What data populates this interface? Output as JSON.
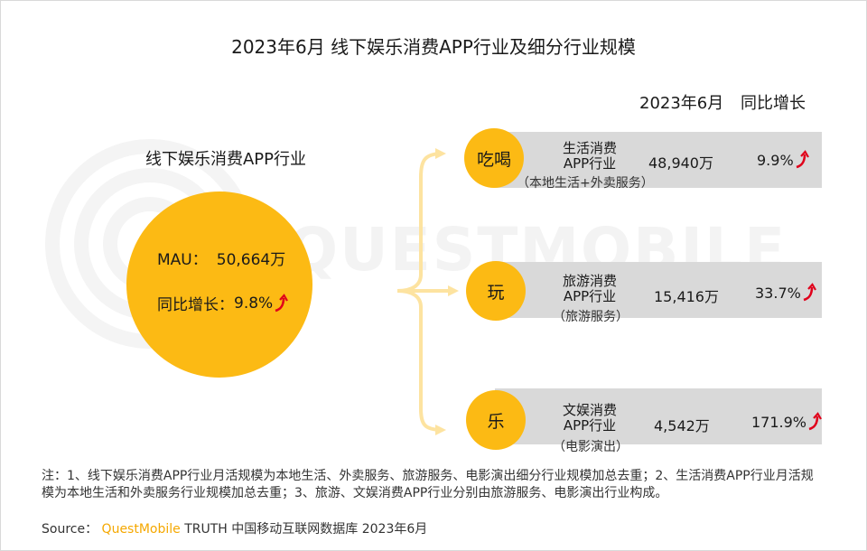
{
  "title": "2023年6月 线下娱乐消费APP行业及细分行业规模",
  "watermark": "QUESTMOBILE",
  "main": {
    "label": "线下娱乐消费APP行业",
    "mau_label": "MAU：",
    "mau_value": "50,664万",
    "growth_label": "同比增长：",
    "growth_value": "9.8%"
  },
  "headers": {
    "period": "2023年6月",
    "growth": "同比增长"
  },
  "rows": [
    {
      "circle": "吃喝",
      "name_line1": "生活消费",
      "name_line2": "APP行业",
      "sub": "（本地生活+外卖服务）",
      "value": "48,940万",
      "growth": "9.9%"
    },
    {
      "circle": "玩",
      "name_line1": "旅游消费",
      "name_line2": "APP行业",
      "sub": "（旅游服务）",
      "value": "15,416万",
      "growth": "33.7%"
    },
    {
      "circle": "乐",
      "name_line1": "文娱消费",
      "name_line2": "APP行业",
      "sub": "（电影演出）",
      "value": "4,542万",
      "growth": "171.9%"
    }
  ],
  "note": "注：1、线下娱乐消费APP行业月活规模为本地生活、外卖服务、旅游服务、电影演出细分行业规模加总去重；2、生活消费APP行业月活规模为本地生活和外卖服务行业规模加总去重；3、旅游、文娱消费APP行业分别由旅游服务、电影演出行业构成。",
  "source": {
    "label": "Source：",
    "brand": "QuestMobile",
    "rest": "TRUTH 中国移动互联网数据库 2023年6月"
  },
  "colors": {
    "accent": "#fcba14",
    "bar": "#d9d9d9",
    "bracket": "#fde3a0",
    "arrow": "#e0001b"
  },
  "icons": {
    "growth_arrow": "red-curved-up-arrow-icon",
    "logo": "questmobile-watermark-logo"
  }
}
